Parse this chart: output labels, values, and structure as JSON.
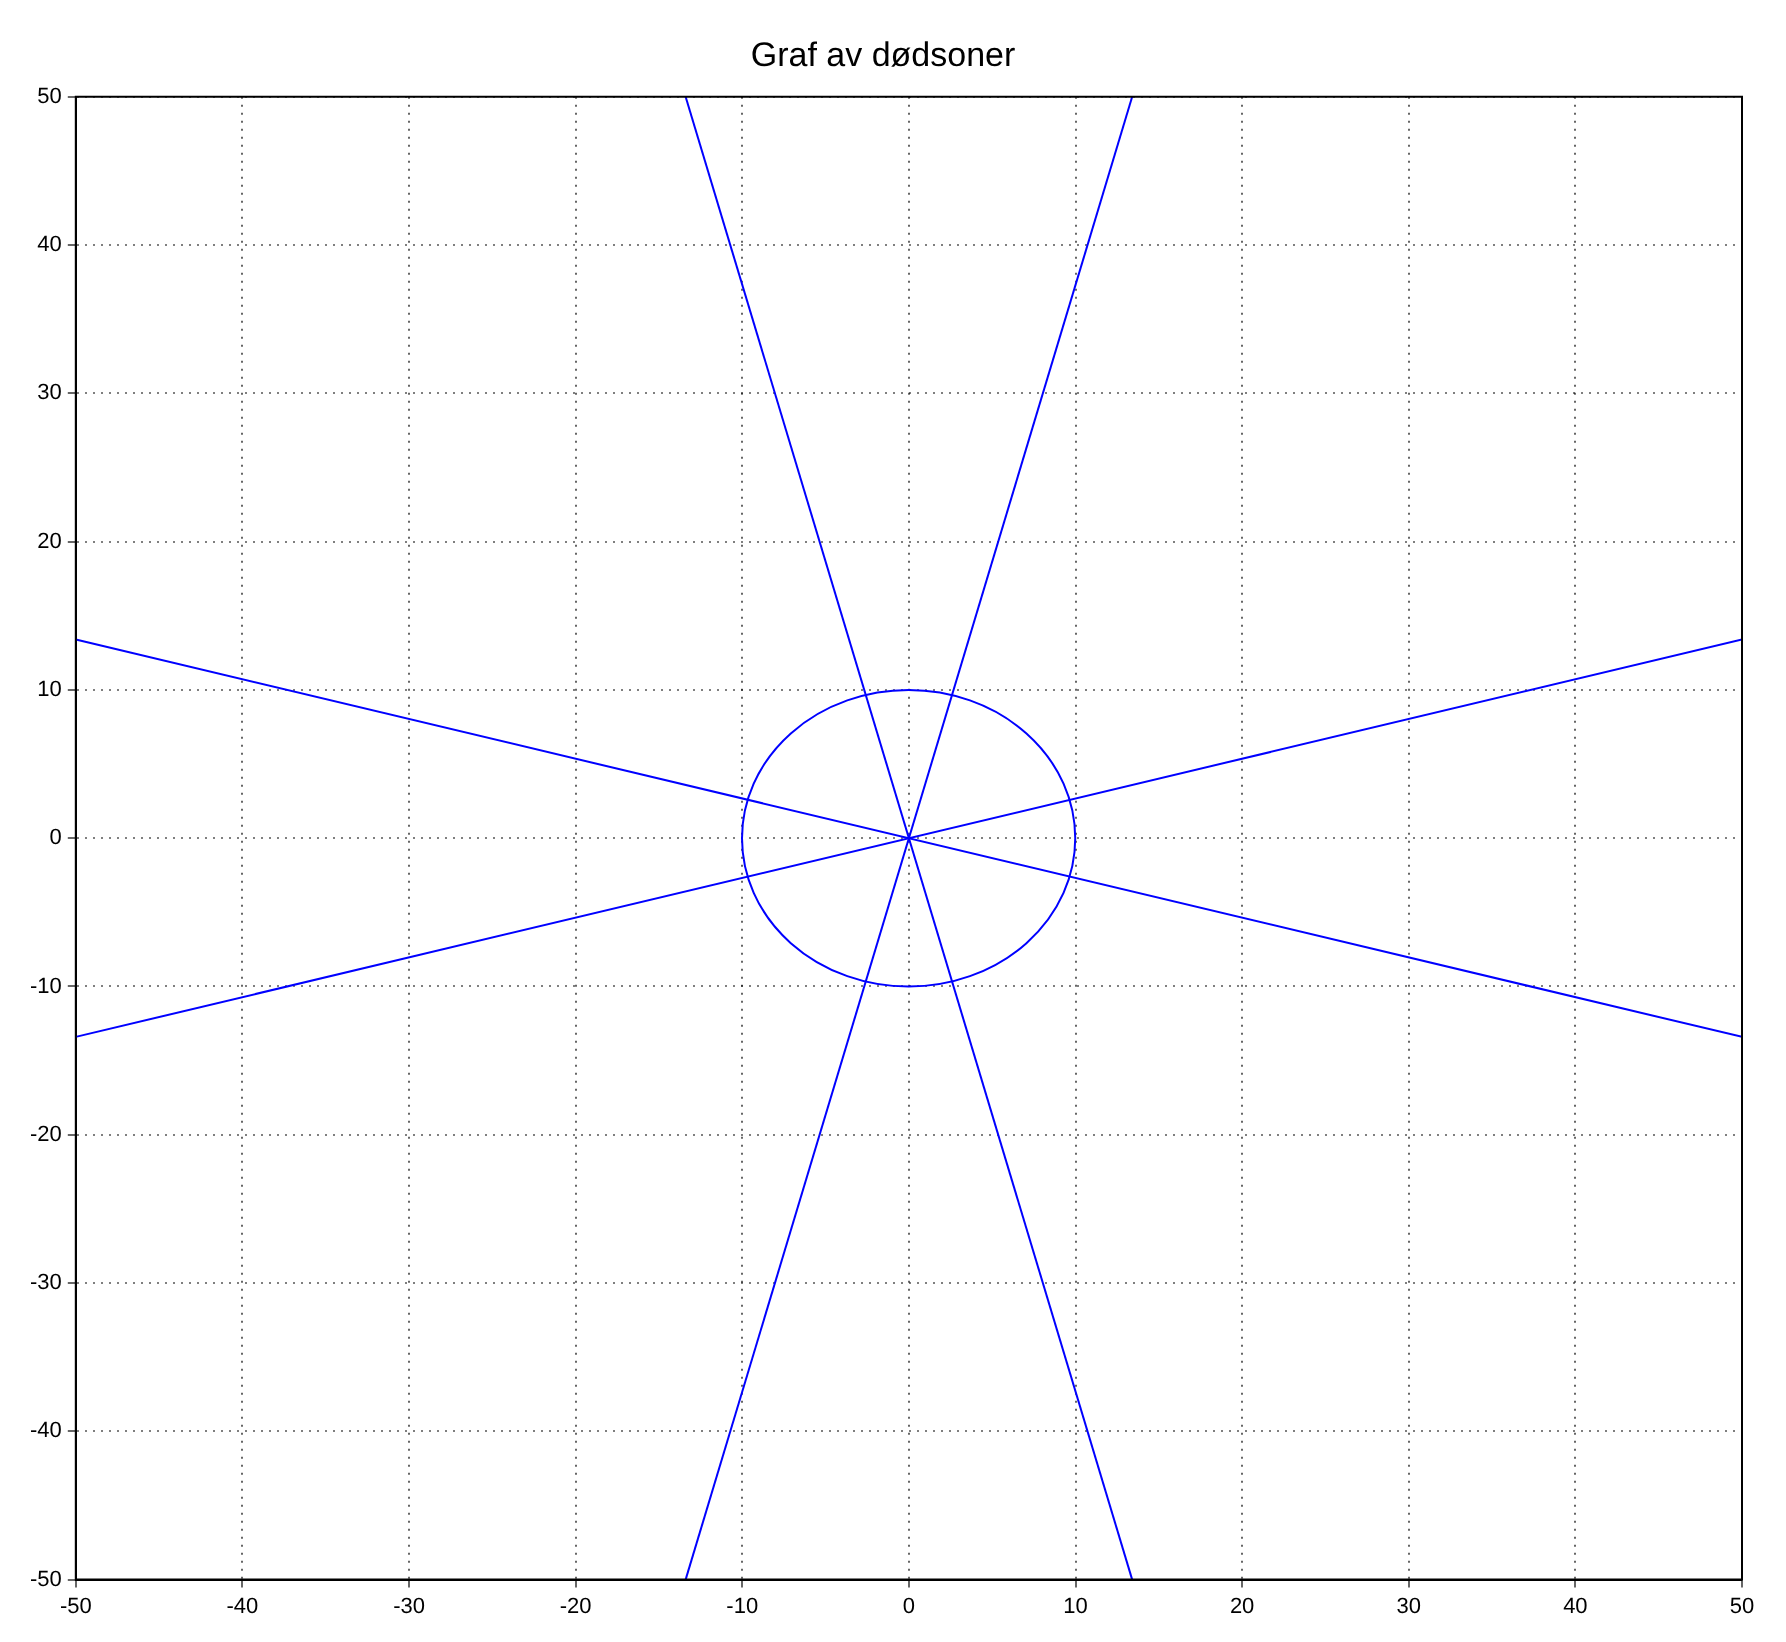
{
  "chart_data": {
    "type": "line",
    "title": "Graf av dødsoner",
    "xlim": [
      -50,
      50
    ],
    "ylim": [
      -50,
      50
    ],
    "xticks": [
      -50,
      -40,
      -30,
      -20,
      -10,
      0,
      10,
      20,
      30,
      40,
      50
    ],
    "yticks": [
      -50,
      -40,
      -30,
      -20,
      -10,
      0,
      10,
      20,
      30,
      40,
      50
    ],
    "grid": true,
    "marker": "none",
    "line_style": "solid",
    "series": [
      {
        "color": "#0000ff",
        "x": [
          -50,
          50
        ],
        "values": [
          -13.4,
          13.4
        ]
      },
      {
        "color": "#0000ff",
        "x": [
          -50,
          50
        ],
        "values": [
          13.4,
          -13.4
        ]
      },
      {
        "color": "#0000ff",
        "x": [
          -13.4,
          13.4
        ],
        "values": [
          -50,
          50
        ]
      },
      {
        "color": "#0000ff",
        "x": [
          13.4,
          -13.4
        ],
        "values": [
          -50,
          50
        ]
      }
    ]
  }
}
